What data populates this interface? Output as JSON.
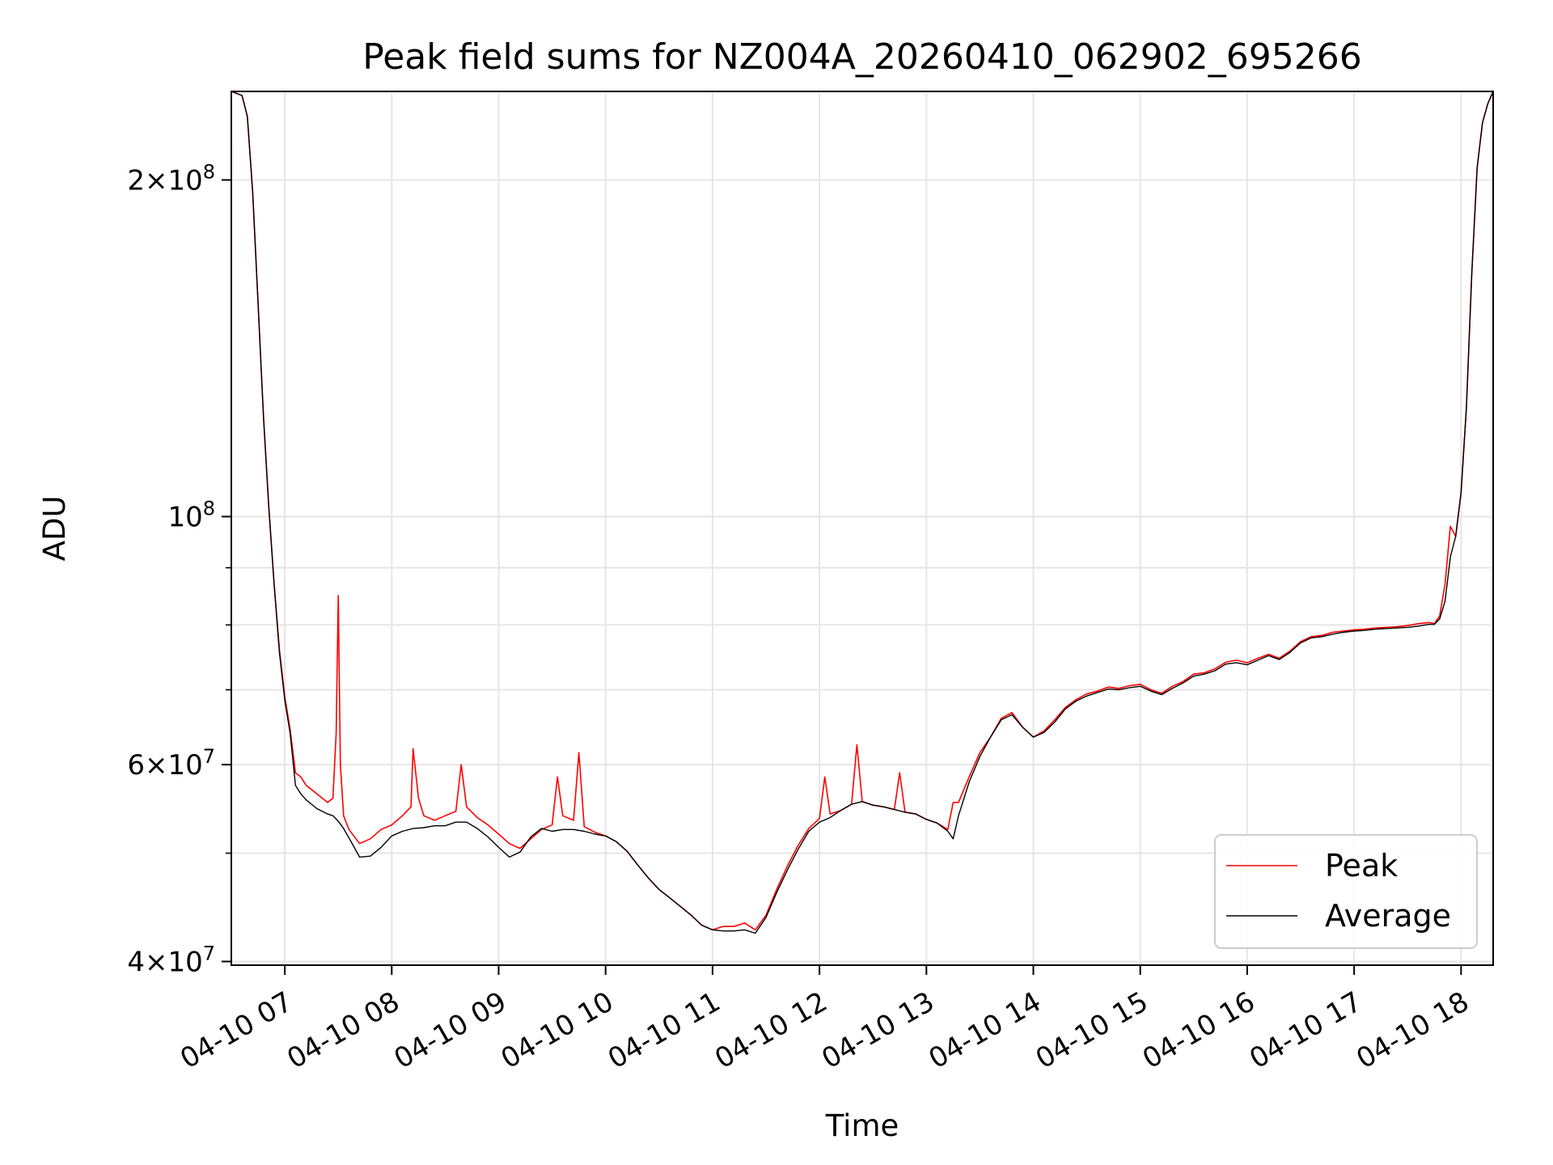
{
  "chart_data": {
    "type": "line",
    "title": "Peak field sums for NZ004A_20260410_062902_695266",
    "xlabel": "Time",
    "ylabel": "ADU",
    "yscale": "log",
    "xlim": [
      6.5,
      18.3
    ],
    "ylim": [
      39700000,
      240000000
    ],
    "grid": true,
    "legend_position": "lower-right",
    "x_unit": "hour of 2026-04-10",
    "xticks": [
      {
        "value": 7,
        "label": "04-10 07"
      },
      {
        "value": 8,
        "label": "04-10 08"
      },
      {
        "value": 9,
        "label": "04-10 09"
      },
      {
        "value": 10,
        "label": "04-10 10"
      },
      {
        "value": 11,
        "label": "04-10 11"
      },
      {
        "value": 12,
        "label": "04-10 12"
      },
      {
        "value": 13,
        "label": "04-10 13"
      },
      {
        "value": 14,
        "label": "04-10 14"
      },
      {
        "value": 15,
        "label": "04-10 15"
      },
      {
        "value": 16,
        "label": "04-10 16"
      },
      {
        "value": 17,
        "label": "04-10 17"
      },
      {
        "value": 18,
        "label": "04-10 18"
      }
    ],
    "yticks_major": [
      {
        "value": 40000000,
        "mant": "4",
        "exp": "7"
      },
      {
        "value": 60000000,
        "mant": "6",
        "exp": "7"
      },
      {
        "value": 100000000,
        "mant": "",
        "exp": "8"
      },
      {
        "value": 200000000,
        "mant": "2",
        "exp": "8"
      }
    ],
    "yticks_minor": [
      50000000,
      70000000,
      80000000,
      90000000
    ],
    "series": [
      {
        "name": "Peak",
        "color": "#ff0000",
        "x": [
          6.5,
          6.6,
          6.65,
          6.7,
          6.75,
          6.8,
          6.85,
          6.9,
          6.95,
          7.0,
          7.05,
          7.1,
          7.15,
          7.2,
          7.3,
          7.4,
          7.45,
          7.48,
          7.5,
          7.52,
          7.55,
          7.6,
          7.7,
          7.8,
          7.9,
          8.0,
          8.1,
          8.18,
          8.2,
          8.25,
          8.3,
          8.4,
          8.5,
          8.6,
          8.65,
          8.7,
          8.8,
          8.9,
          9.0,
          9.1,
          9.2,
          9.3,
          9.4,
          9.5,
          9.55,
          9.6,
          9.7,
          9.75,
          9.8,
          9.9,
          10.0,
          10.1,
          10.2,
          10.3,
          10.4,
          10.5,
          10.6,
          10.7,
          10.8,
          10.9,
          11.0,
          11.1,
          11.2,
          11.3,
          11.4,
          11.5,
          11.6,
          11.7,
          11.8,
          11.9,
          12.0,
          12.05,
          12.1,
          12.2,
          12.3,
          12.35,
          12.4,
          12.5,
          12.6,
          12.7,
          12.75,
          12.8,
          12.9,
          13.0,
          13.1,
          13.2,
          13.25,
          13.3,
          13.4,
          13.5,
          13.6,
          13.7,
          13.8,
          13.9,
          14.0,
          14.1,
          14.2,
          14.3,
          14.4,
          14.5,
          14.6,
          14.7,
          14.8,
          14.9,
          15.0,
          15.1,
          15.2,
          15.3,
          15.4,
          15.5,
          15.6,
          15.7,
          15.8,
          15.9,
          16.0,
          16.1,
          16.2,
          16.3,
          16.4,
          16.5,
          16.6,
          16.7,
          16.8,
          16.9,
          17.0,
          17.1,
          17.2,
          17.3,
          17.4,
          17.5,
          17.6,
          17.7,
          17.75,
          17.8,
          17.85,
          17.9,
          17.95,
          18.0,
          18.05,
          18.1,
          18.15,
          18.2,
          18.25,
          18.3
        ],
        "y": [
          240000000,
          238000000,
          228000000,
          195000000,
          155000000,
          123000000,
          102000000,
          87000000,
          76000000,
          69000000,
          64500000,
          59000000,
          58500000,
          57500000,
          56500000,
          55500000,
          56000000,
          64000000,
          85000000,
          60000000,
          54000000,
          52500000,
          51000000,
          51500000,
          52500000,
          53000000,
          54000000,
          55000000,
          62000000,
          56000000,
          54000000,
          53500000,
          54000000,
          54500000,
          60000000,
          55000000,
          53800000,
          53000000,
          52000000,
          51000000,
          50500000,
          51500000,
          52500000,
          53000000,
          58500000,
          54000000,
          53500000,
          61500000,
          52800000,
          52200000,
          51800000,
          51200000,
          50200000,
          48800000,
          47500000,
          46400000,
          45600000,
          44800000,
          44000000,
          43100000,
          42700000,
          43000000,
          43000000,
          43300000,
          42700000,
          44000000,
          46400000,
          48700000,
          50800000,
          52600000,
          53700000,
          58500000,
          54200000,
          54600000,
          55300000,
          62500000,
          55600000,
          55200000,
          55000000,
          54700000,
          59000000,
          54400000,
          54200000,
          53600000,
          53200000,
          52500000,
          55500000,
          55500000,
          58500000,
          61500000,
          63500000,
          66000000,
          66800000,
          64800000,
          63500000,
          64300000,
          65800000,
          67500000,
          68600000,
          69400000,
          69800000,
          70400000,
          70200000,
          70600000,
          70800000,
          70000000,
          69500000,
          70500000,
          71200000,
          72300000,
          72500000,
          73100000,
          74100000,
          74400000,
          74000000,
          74700000,
          75300000,
          74700000,
          75800000,
          77300000,
          78100000,
          78300000,
          78800000,
          79000000,
          79200000,
          79300000,
          79500000,
          79600000,
          79700000,
          79900000,
          80200000,
          80400000,
          80200000,
          81500000,
          87000000,
          98000000,
          96000000,
          105000000,
          125000000,
          165000000,
          205000000,
          225000000,
          234000000,
          240000000
        ]
      },
      {
        "name": "Average",
        "color": "#000000",
        "x": [
          6.5,
          6.6,
          6.65,
          6.7,
          6.75,
          6.8,
          6.85,
          6.9,
          6.95,
          7.0,
          7.05,
          7.1,
          7.15,
          7.2,
          7.3,
          7.4,
          7.45,
          7.5,
          7.55,
          7.6,
          7.7,
          7.8,
          7.9,
          8.0,
          8.1,
          8.2,
          8.3,
          8.4,
          8.5,
          8.6,
          8.7,
          8.8,
          8.9,
          9.0,
          9.1,
          9.2,
          9.3,
          9.4,
          9.5,
          9.6,
          9.7,
          9.8,
          9.9,
          10.0,
          10.1,
          10.2,
          10.3,
          10.4,
          10.5,
          10.6,
          10.7,
          10.8,
          10.9,
          11.0,
          11.1,
          11.2,
          11.3,
          11.4,
          11.5,
          11.6,
          11.7,
          11.8,
          11.9,
          12.0,
          12.1,
          12.2,
          12.3,
          12.4,
          12.5,
          12.6,
          12.7,
          12.8,
          12.9,
          13.0,
          13.1,
          13.2,
          13.25,
          13.3,
          13.4,
          13.5,
          13.6,
          13.7,
          13.8,
          13.9,
          14.0,
          14.1,
          14.2,
          14.3,
          14.4,
          14.5,
          14.6,
          14.7,
          14.8,
          14.9,
          15.0,
          15.1,
          15.2,
          15.3,
          15.4,
          15.5,
          15.6,
          15.7,
          15.8,
          15.9,
          16.0,
          16.1,
          16.2,
          16.3,
          16.4,
          16.5,
          16.6,
          16.7,
          16.8,
          16.9,
          17.0,
          17.1,
          17.2,
          17.3,
          17.4,
          17.5,
          17.6,
          17.7,
          17.75,
          17.8,
          17.85,
          17.9,
          17.95,
          18.0,
          18.05,
          18.1,
          18.15,
          18.2,
          18.25,
          18.3
        ],
        "y": [
          240000000,
          238000000,
          228000000,
          195000000,
          155000000,
          123000000,
          102000000,
          87000000,
          75500000,
          68500000,
          64000000,
          57500000,
          56500000,
          55800000,
          54800000,
          54200000,
          54000000,
          53400000,
          52600000,
          51600000,
          49600000,
          49700000,
          50600000,
          51800000,
          52300000,
          52600000,
          52700000,
          52900000,
          52900000,
          53300000,
          53300000,
          52600000,
          51700000,
          50600000,
          49600000,
          50100000,
          51700000,
          52600000,
          52300000,
          52500000,
          52500000,
          52300000,
          52000000,
          51800000,
          51200000,
          50200000,
          48800000,
          47500000,
          46400000,
          45600000,
          44800000,
          44000000,
          43100000,
          42700000,
          42600000,
          42600000,
          42700000,
          42400000,
          43800000,
          46100000,
          48300000,
          50400000,
          52300000,
          53300000,
          53800000,
          54600000,
          55300000,
          55600000,
          55200000,
          55000000,
          54700000,
          54400000,
          54200000,
          53600000,
          53200000,
          52300000,
          51500000,
          54000000,
          57900000,
          61000000,
          63500000,
          65800000,
          66500000,
          64800000,
          63500000,
          64100000,
          65500000,
          67300000,
          68400000,
          69100000,
          69600000,
          70100000,
          70000000,
          70300000,
          70500000,
          69800000,
          69300000,
          70200000,
          71000000,
          72000000,
          72300000,
          72800000,
          73800000,
          74000000,
          73700000,
          74400000,
          75100000,
          74500000,
          75600000,
          77100000,
          77900000,
          78100000,
          78500000,
          78800000,
          79000000,
          79100000,
          79300000,
          79400000,
          79500000,
          79600000,
          79800000,
          80100000,
          80100000,
          81000000,
          84000000,
          92000000,
          96000000,
          105000000,
          125000000,
          165000000,
          205000000,
          225000000,
          234000000,
          240000000
        ]
      }
    ]
  }
}
